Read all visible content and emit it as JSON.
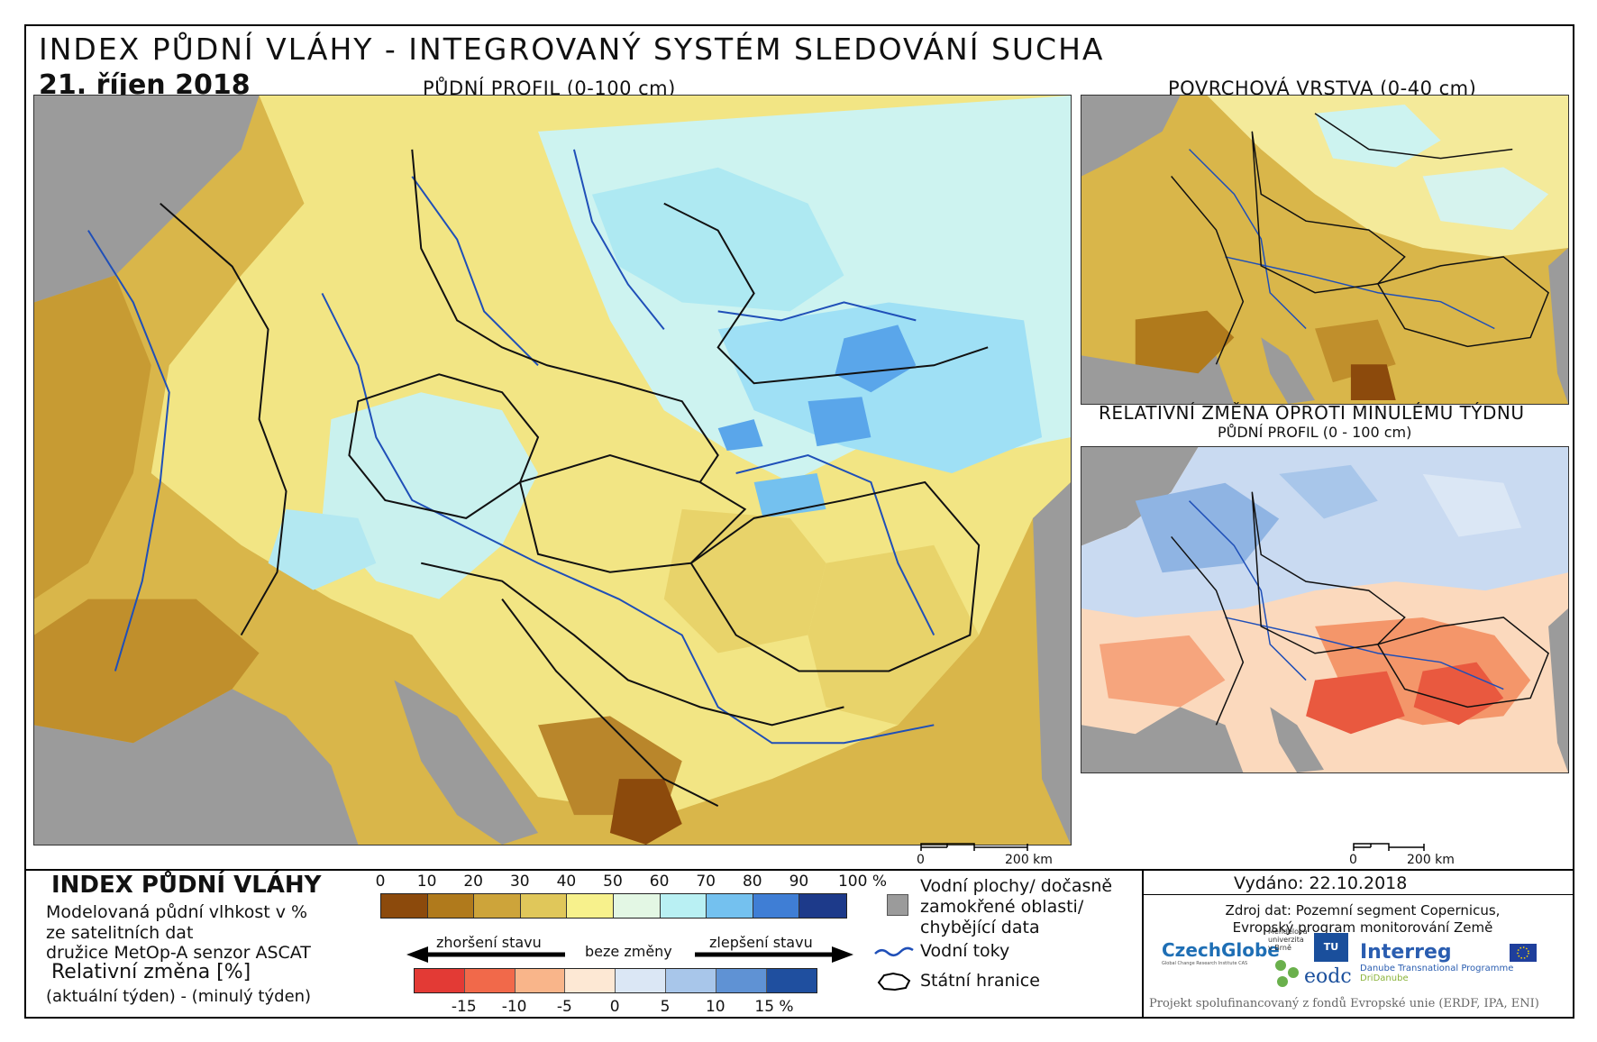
{
  "header": {
    "title": "INDEX PŮDNÍ VLÁHY - INTEGROVANÝ SYSTÉM SLEDOVÁNÍ SUCHA",
    "date": "21. říjen 2018"
  },
  "maps": {
    "main_title": "PŮDNÍ PROFIL (0-100 cm)",
    "surface_title": "POVRCHOVÁ VRSTVA (0-40 cm)",
    "change_title": "RELATIVNÍ ZMĚNA OPROTI MINULÉMU TÝDNU",
    "change_subtitle": "PŮDNÍ PROFIL (0 - 100 cm)",
    "scale_zero": "0",
    "scale_dist": "200 km"
  },
  "legend": {
    "title": "INDEX PŮDNÍ VLÁHY",
    "desc_lines": [
      "Modelovaná půdní vlhkost v %",
      "ze satelitních dat",
      "družice MetOp-A senzor ASCAT"
    ],
    "rel_title": "Relativní změna [%]",
    "rel_desc": "(aktuální týden) - (minulý týden)",
    "index_ticks": [
      "0",
      "10",
      "20",
      "30",
      "40",
      "50",
      "60",
      "70",
      "80",
      "90",
      "100 %"
    ],
    "index_colors": [
      "#8c4a0c",
      "#b07a1c",
      "#cda43a",
      "#e0c75a",
      "#f7f18c",
      "#e3f7e4",
      "#b9f0f3",
      "#74c1ef",
      "#3f7ed5",
      "#1d3a8a"
    ],
    "worse_label": "zhoršení stavu",
    "nochange_label": "beze změny",
    "better_label": "zlepšení stavu",
    "rel_ticks": [
      "-15",
      "-10",
      "-5",
      "0",
      "5",
      "10",
      "15 %"
    ],
    "rel_colors": [
      "#e33a35",
      "#f1694a",
      "#f9b58a",
      "#fde8d4",
      "#dbe7f5",
      "#a8c6ea",
      "#5f92d4",
      "#1f4f9f"
    ],
    "key_water": "Vodní plochy/ dočasně",
    "key_water2": "zamokřené oblasti/",
    "key_water3": "chybějící data",
    "key_rivers": "Vodní toky",
    "key_borders": "Státní hranice"
  },
  "info": {
    "issued": "Vydáno: 22.10.2018",
    "source_line1": "Zdroj dat: Pozemní segment Copernicus,",
    "source_line2": "Evropský program monitorování Země",
    "logo_czechglobe": "CzechGlobe",
    "logo_czechglobe_sub": "Global Change Research Institute CAS",
    "logo_mendel": "Mendelova univerzita v Brně",
    "logo_tu": "TU WIEN",
    "logo_eodc": "eodc",
    "logo_interreg": "Interreg",
    "logo_interreg_sub1": "Danube Transnational Programme",
    "logo_interreg_sub2": "DriDanube",
    "footer": "Projekt spolufinancovaný z fondů Evropské unie (ERDF, IPA, ENI)"
  }
}
